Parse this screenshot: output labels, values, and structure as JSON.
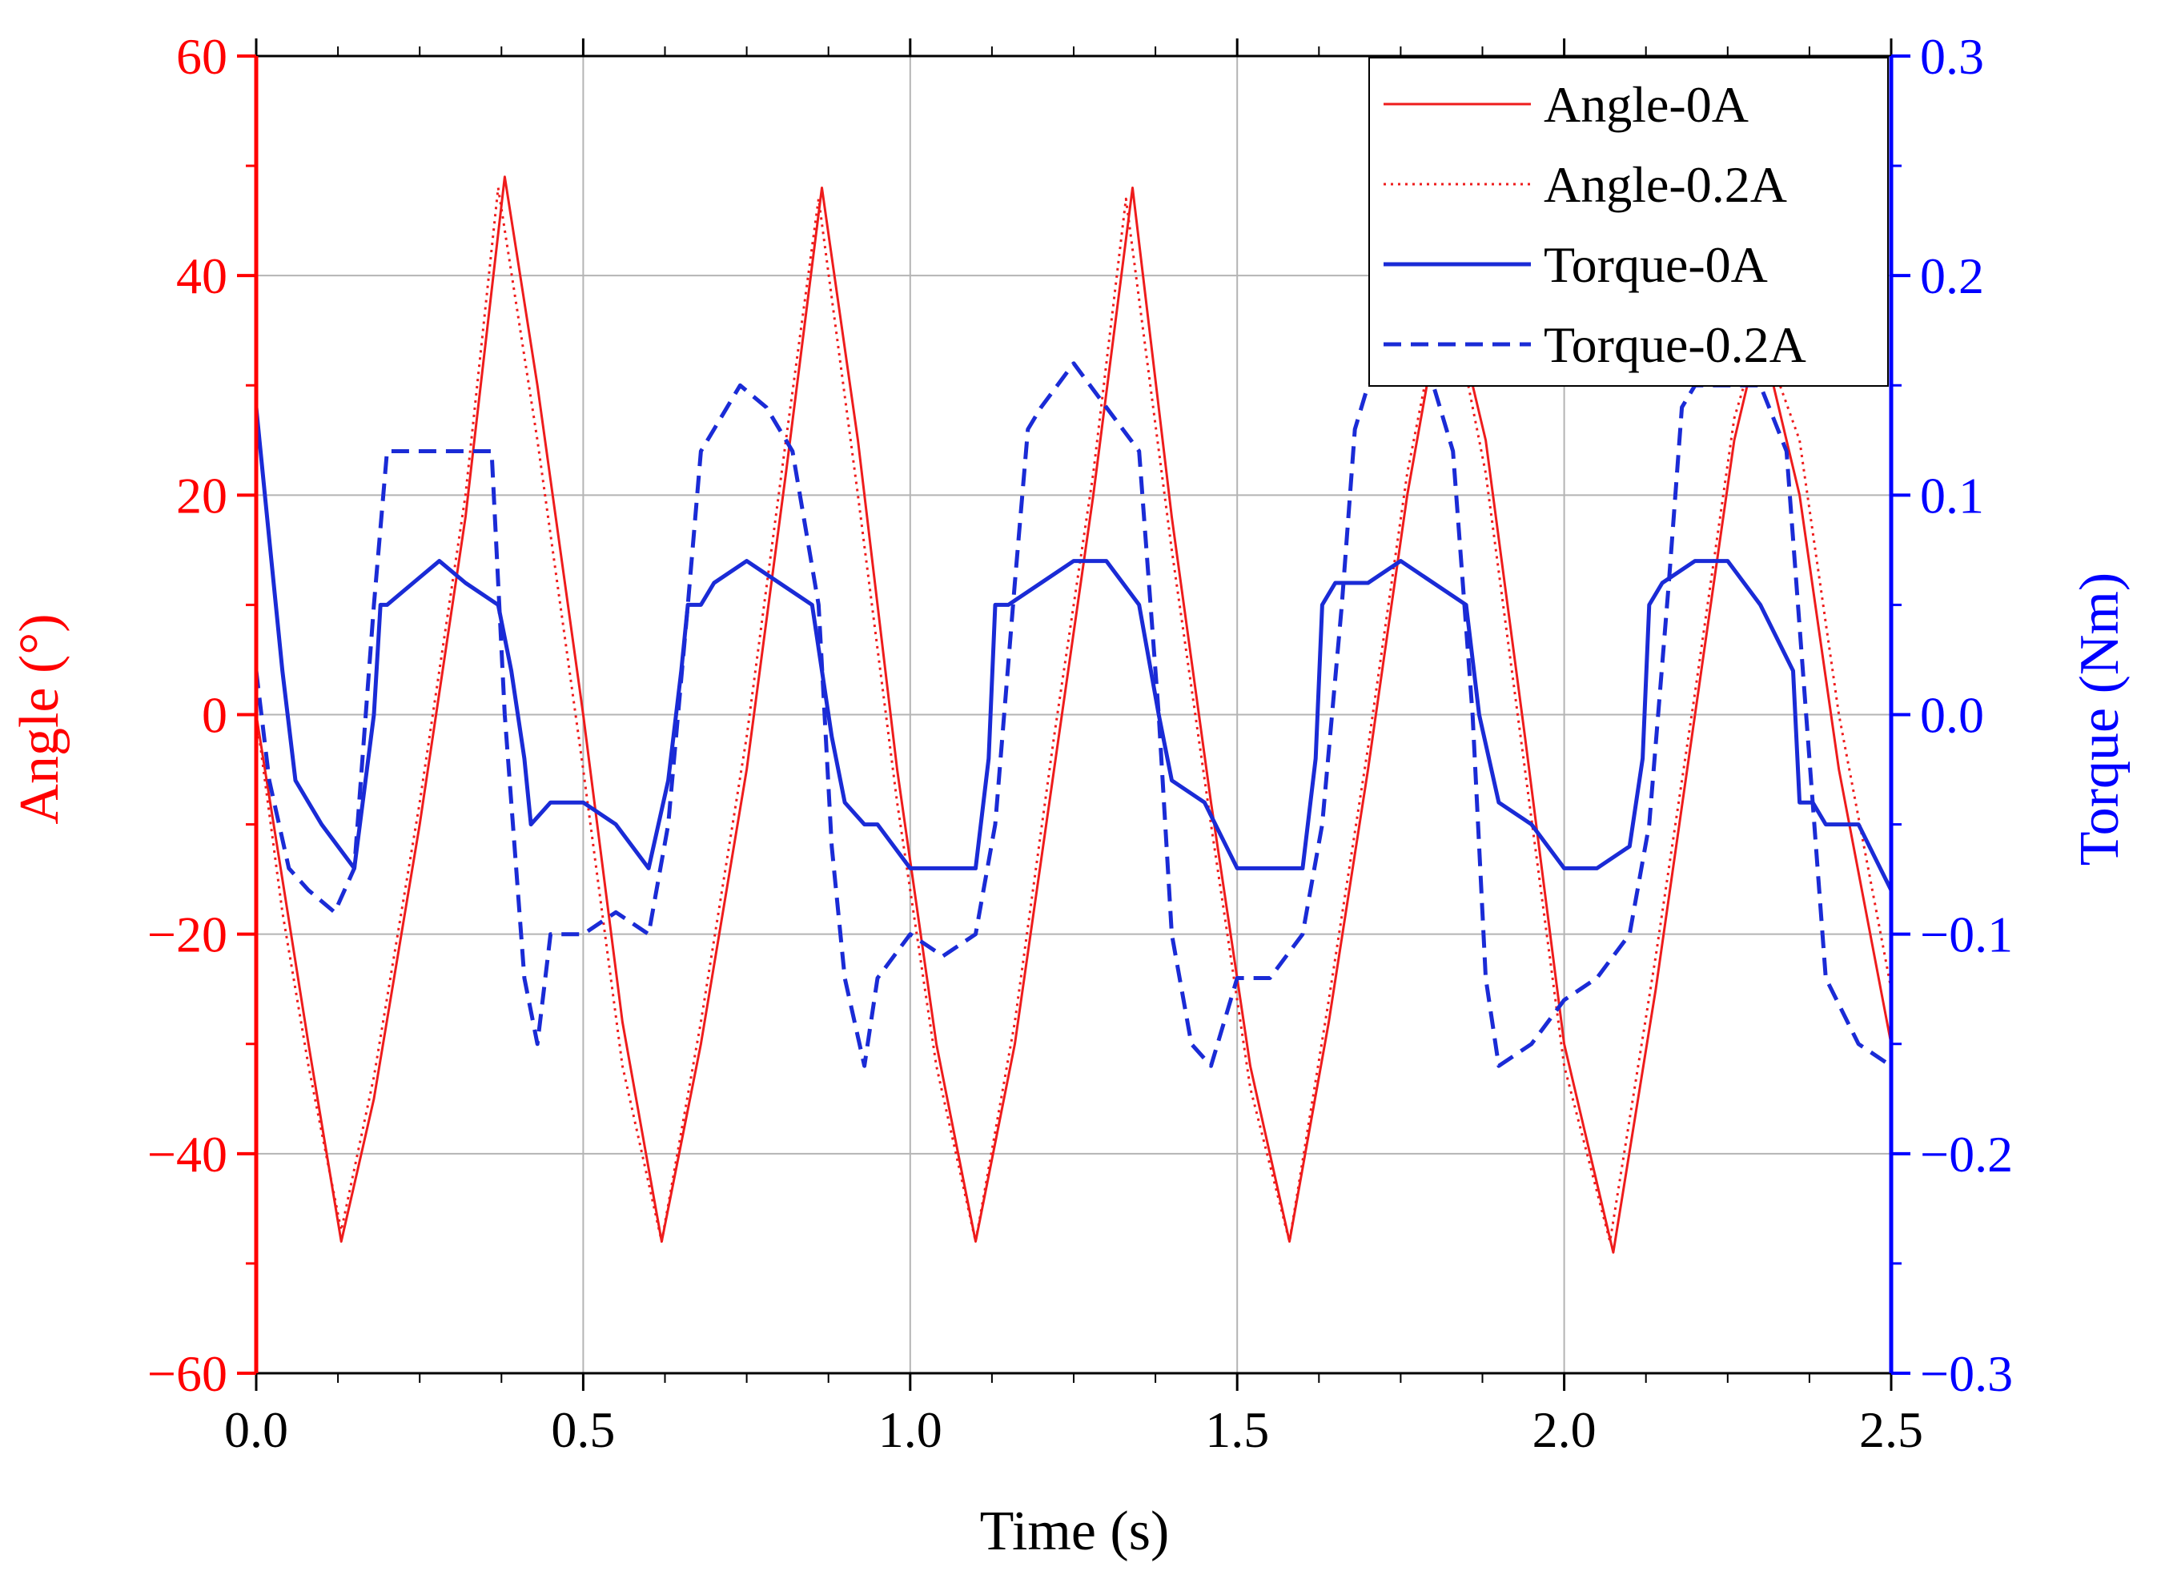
{
  "chart_data": {
    "type": "line",
    "xlabel": "Time (s)",
    "ylabel_left": "Angle (°)",
    "ylabel_right": "Torque (Nm)",
    "xlim": [
      0,
      2.5
    ],
    "ylim_left": [
      -60,
      60
    ],
    "ylim_right": [
      -0.3,
      0.3
    ],
    "x_ticks": [
      0.0,
      0.5,
      1.0,
      1.5,
      2.0,
      2.5
    ],
    "x_tick_labels": [
      "0.0",
      "0.5",
      "1.0",
      "1.5",
      "2.0",
      "2.5"
    ],
    "y_left_ticks": [
      60,
      40,
      20,
      0,
      -20,
      -40,
      -60
    ],
    "y_left_tick_labels": [
      "60",
      "40",
      "20",
      "0",
      "−20",
      "−40",
      "−60"
    ],
    "y_right_ticks": [
      0.3,
      0.2,
      0.1,
      0.0,
      -0.1,
      -0.2,
      -0.3
    ],
    "y_right_tick_labels": [
      "0.3",
      "0.2",
      "0.1",
      "0.0",
      "−0.1",
      "−0.2",
      "−0.3"
    ],
    "grid": true,
    "legend_position": "top-right",
    "colors": {
      "angle": "#ee1c1c",
      "torque": "#1a2bd6",
      "left_axis": "#ff0000",
      "right_axis": "#0000ff"
    },
    "series": [
      {
        "name": "Angle-0A",
        "axis": "left",
        "style": "solid",
        "x": [
          0.0,
          0.04,
          0.08,
          0.13,
          0.18,
          0.25,
          0.32,
          0.38,
          0.43,
          0.5,
          0.56,
          0.62,
          0.68,
          0.75,
          0.81,
          0.865,
          0.92,
          0.98,
          1.04,
          1.1,
          1.16,
          1.22,
          1.28,
          1.34,
          1.4,
          1.46,
          1.52,
          1.58,
          1.64,
          1.7,
          1.76,
          1.82,
          1.88,
          1.94,
          2.0,
          2.075,
          2.14,
          2.2,
          2.26,
          2.3,
          2.36,
          2.42,
          2.5
        ],
        "y": [
          0,
          -15,
          -30,
          -48,
          -35,
          -10,
          18,
          49,
          30,
          0,
          -28,
          -48,
          -30,
          -5,
          22,
          48,
          25,
          -5,
          -30,
          -48,
          -30,
          -5,
          20,
          48,
          18,
          -8,
          -32,
          -48,
          -28,
          -5,
          20,
          40,
          25,
          -2,
          -30,
          -49,
          -25,
          0,
          25,
          35,
          20,
          -5,
          -30
        ]
      },
      {
        "name": "Angle-0.2A",
        "axis": "left",
        "style": "dotted",
        "x": [
          0.0,
          0.04,
          0.08,
          0.13,
          0.18,
          0.25,
          0.32,
          0.37,
          0.43,
          0.5,
          0.56,
          0.62,
          0.68,
          0.75,
          0.81,
          0.86,
          0.92,
          0.98,
          1.04,
          1.1,
          1.16,
          1.22,
          1.28,
          1.33,
          1.4,
          1.46,
          1.52,
          1.58,
          1.64,
          1.7,
          1.76,
          1.82,
          1.88,
          1.94,
          2.0,
          2.07,
          2.14,
          2.2,
          2.26,
          2.3,
          2.36,
          2.42,
          2.5
        ],
        "y": [
          0,
          -18,
          -32,
          -47,
          -33,
          -8,
          20,
          48,
          25,
          -5,
          -32,
          -48,
          -28,
          -2,
          25,
          47,
          20,
          -8,
          -32,
          -48,
          -28,
          -2,
          22,
          47,
          15,
          -10,
          -34,
          -48,
          -26,
          -3,
          22,
          40,
          22,
          -5,
          -32,
          -48,
          -22,
          2,
          27,
          35,
          25,
          0,
          -25
        ]
      },
      {
        "name": "Torque-0A",
        "axis": "right",
        "style": "solid",
        "x": [
          0.0,
          0.02,
          0.04,
          0.06,
          0.1,
          0.15,
          0.18,
          0.19,
          0.2,
          0.24,
          0.28,
          0.32,
          0.37,
          0.39,
          0.41,
          0.42,
          0.45,
          0.5,
          0.55,
          0.6,
          0.63,
          0.65,
          0.66,
          0.68,
          0.7,
          0.75,
          0.8,
          0.85,
          0.88,
          0.9,
          0.93,
          0.95,
          1.0,
          1.05,
          1.1,
          1.12,
          1.13,
          1.15,
          1.2,
          1.25,
          1.3,
          1.35,
          1.38,
          1.4,
          1.45,
          1.5,
          1.55,
          1.6,
          1.62,
          1.63,
          1.65,
          1.7,
          1.75,
          1.8,
          1.85,
          1.87,
          1.9,
          1.95,
          2.0,
          2.05,
          2.1,
          2.12,
          2.13,
          2.15,
          2.2,
          2.25,
          2.3,
          2.35,
          2.36,
          2.38,
          2.4,
          2.45,
          2.5
        ],
        "y": [
          0.14,
          0.08,
          0.02,
          -0.03,
          -0.05,
          -0.07,
          0.0,
          0.05,
          0.05,
          0.06,
          0.07,
          0.06,
          0.05,
          0.02,
          -0.02,
          -0.05,
          -0.04,
          -0.04,
          -0.05,
          -0.07,
          -0.03,
          0.02,
          0.05,
          0.05,
          0.06,
          0.07,
          0.06,
          0.05,
          -0.01,
          -0.04,
          -0.05,
          -0.05,
          -0.07,
          -0.07,
          -0.07,
          -0.02,
          0.05,
          0.05,
          0.06,
          0.07,
          0.07,
          0.05,
          0.0,
          -0.03,
          -0.04,
          -0.07,
          -0.07,
          -0.07,
          -0.02,
          0.05,
          0.06,
          0.06,
          0.07,
          0.06,
          0.05,
          0.0,
          -0.04,
          -0.05,
          -0.07,
          -0.07,
          -0.06,
          -0.02,
          0.05,
          0.06,
          0.07,
          0.07,
          0.05,
          0.02,
          -0.04,
          -0.04,
          -0.05,
          -0.05,
          -0.08
        ]
      },
      {
        "name": "Torque-0.2A",
        "axis": "right",
        "style": "dashed",
        "x": [
          0.0,
          0.02,
          0.05,
          0.08,
          0.12,
          0.15,
          0.18,
          0.2,
          0.25,
          0.3,
          0.36,
          0.38,
          0.41,
          0.43,
          0.45,
          0.5,
          0.55,
          0.6,
          0.63,
          0.66,
          0.68,
          0.7,
          0.74,
          0.78,
          0.82,
          0.86,
          0.88,
          0.9,
          0.93,
          0.95,
          1.0,
          1.05,
          1.1,
          1.13,
          1.16,
          1.18,
          1.2,
          1.25,
          1.3,
          1.35,
          1.38,
          1.4,
          1.43,
          1.46,
          1.5,
          1.55,
          1.6,
          1.63,
          1.66,
          1.68,
          1.7,
          1.75,
          1.8,
          1.83,
          1.86,
          1.88,
          1.9,
          1.95,
          2.0,
          2.05,
          2.1,
          2.13,
          2.16,
          2.18,
          2.2,
          2.25,
          2.3,
          2.34,
          2.37,
          2.4,
          2.45,
          2.5
        ],
        "y": [
          0.02,
          -0.03,
          -0.07,
          -0.08,
          -0.09,
          -0.07,
          0.05,
          0.12,
          0.12,
          0.12,
          0.12,
          0.0,
          -0.12,
          -0.15,
          -0.1,
          -0.1,
          -0.09,
          -0.1,
          -0.05,
          0.05,
          0.12,
          0.13,
          0.15,
          0.14,
          0.12,
          0.05,
          -0.06,
          -0.12,
          -0.16,
          -0.12,
          -0.1,
          -0.11,
          -0.1,
          -0.05,
          0.06,
          0.13,
          0.14,
          0.16,
          0.14,
          0.12,
          0.0,
          -0.1,
          -0.15,
          -0.16,
          -0.12,
          -0.12,
          -0.1,
          -0.05,
          0.05,
          0.13,
          0.15,
          0.16,
          0.15,
          0.12,
          0.0,
          -0.12,
          -0.16,
          -0.15,
          -0.13,
          -0.12,
          -0.1,
          -0.05,
          0.06,
          0.14,
          0.15,
          0.15,
          0.15,
          0.12,
          0.0,
          -0.12,
          -0.15,
          -0.16
        ]
      }
    ]
  }
}
